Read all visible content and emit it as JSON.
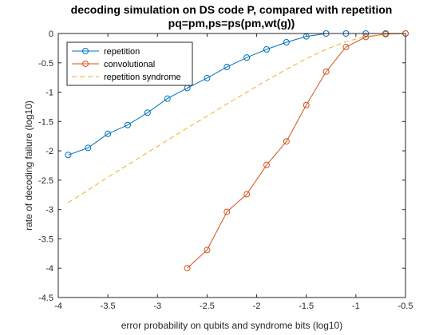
{
  "chart_data": {
    "type": "line",
    "title": "decoding simulation on DS code P, compared with repetition",
    "subtitle": "pq=pm,ps=ps(pm,wt(g))",
    "xlabel": "error probability on qubits and syndrome bits (log10)",
    "ylabel": "rate of decoding failure (log10)",
    "xlim": [
      -4,
      -0.5
    ],
    "ylim": [
      -4.5,
      0
    ],
    "xticks": [
      -4,
      -3.5,
      -3,
      -2.5,
      -2,
      -1.5,
      -1,
      -0.5
    ],
    "xtick_labels": [
      "-4",
      "-3.5",
      "-3",
      "-2.5",
      "-2",
      "-1.5",
      "-1",
      "-0.5"
    ],
    "yticks": [
      0,
      -0.5,
      -1,
      -1.5,
      -2,
      -2.5,
      -3,
      -3.5,
      -4,
      -4.5
    ],
    "ytick_labels": [
      "0",
      "-0.5",
      "-1",
      "-1.5",
      "-2",
      "-2.5",
      "-3",
      "-3.5",
      "-4",
      "-4.5"
    ],
    "grid": false,
    "legend_position": "top-left",
    "series": [
      {
        "name": "repetition",
        "color": "#0072BD",
        "style": "solid",
        "marker": "circle",
        "x": [
          -3.9,
          -3.7,
          -3.5,
          -3.3,
          -3.1,
          -2.9,
          -2.7,
          -2.5,
          -2.3,
          -2.1,
          -1.9,
          -1.7,
          -1.5,
          -1.3,
          -1.1,
          -0.9,
          -0.7,
          -0.5
        ],
        "y": [
          -2.07,
          -1.95,
          -1.71,
          -1.56,
          -1.35,
          -1.11,
          -0.93,
          -0.76,
          -0.57,
          -0.41,
          -0.27,
          -0.15,
          -0.05,
          0.0,
          0.0,
          0.0,
          0.0,
          0.0
        ]
      },
      {
        "name": "convolutional",
        "color": "#D95319",
        "style": "solid",
        "marker": "circle",
        "x": [
          -2.7,
          -2.5,
          -2.3,
          -2.1,
          -1.9,
          -1.7,
          -1.5,
          -1.3,
          -1.1,
          -0.9,
          -0.7,
          -0.5
        ],
        "y": [
          -4.0,
          -3.69,
          -3.04,
          -2.74,
          -2.24,
          -1.84,
          -1.22,
          -0.65,
          -0.23,
          -0.06,
          -0.01,
          0.0
        ]
      },
      {
        "name": "repetition syndrome",
        "color": "#EDB120",
        "style": "dashed",
        "marker": "none",
        "x": [
          -3.9,
          -3.7,
          -3.5,
          -3.3,
          -3.1,
          -2.9,
          -2.7,
          -2.5,
          -2.3,
          -2.1,
          -1.9,
          -1.7,
          -1.5,
          -1.3,
          -1.1,
          -0.9,
          -0.7,
          -0.5
        ],
        "y": [
          -2.88,
          -2.67,
          -2.45,
          -2.24,
          -2.03,
          -1.82,
          -1.61,
          -1.41,
          -1.2,
          -1.0,
          -0.8,
          -0.61,
          -0.43,
          -0.27,
          -0.14,
          -0.05,
          -0.01,
          0.0
        ]
      }
    ]
  }
}
